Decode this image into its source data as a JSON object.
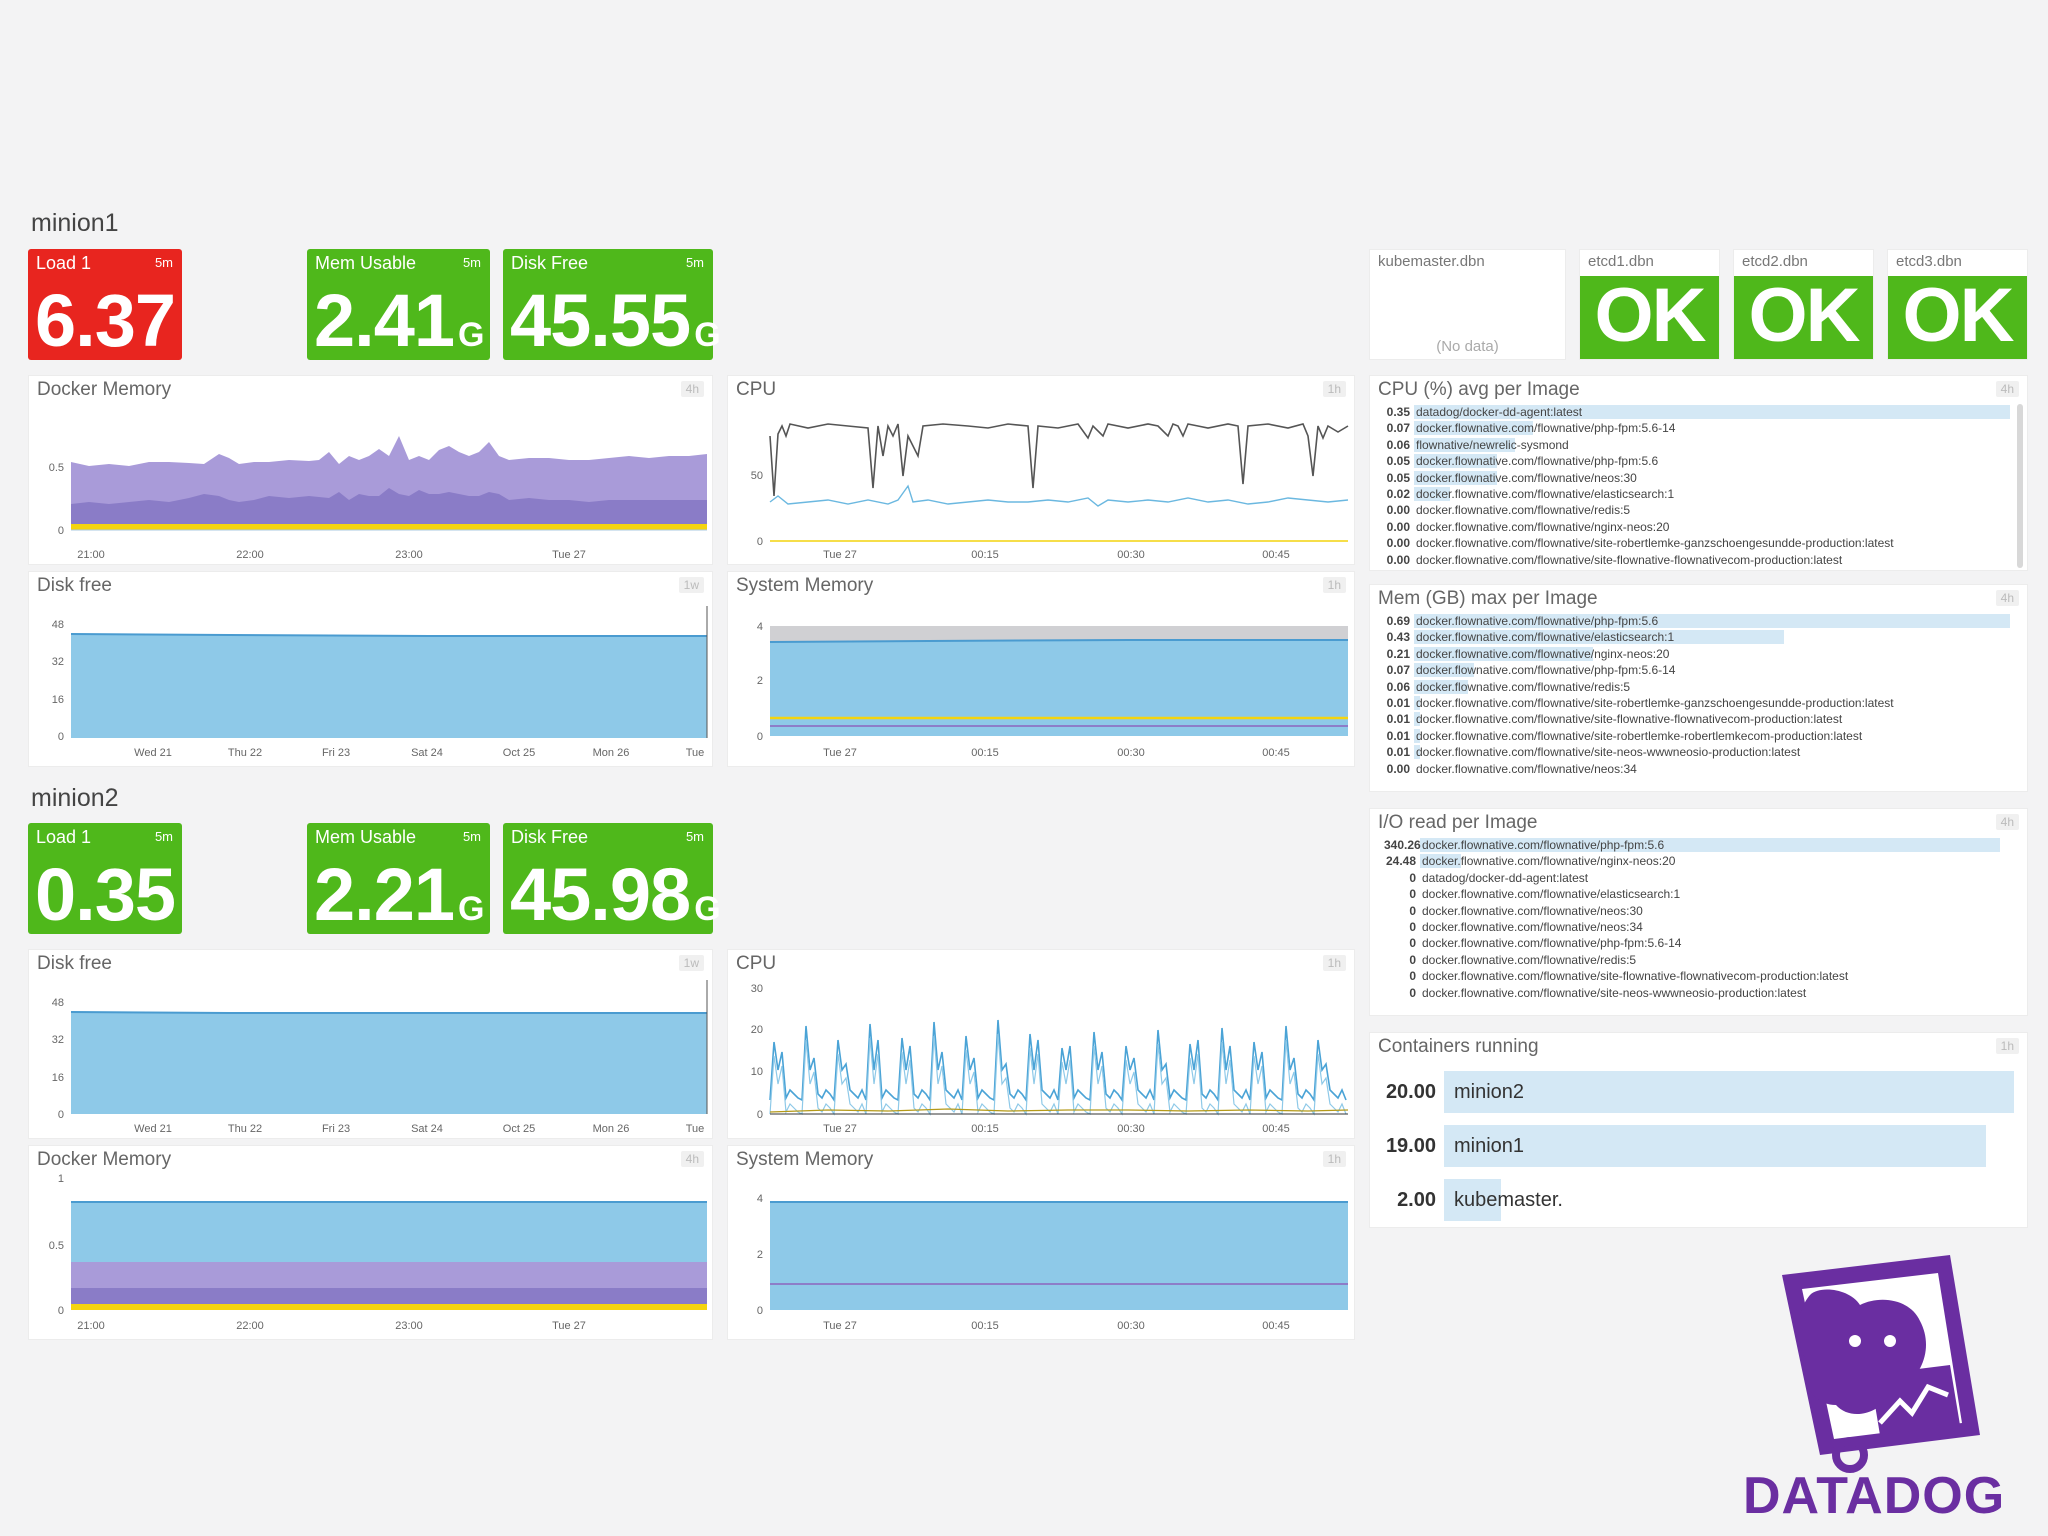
{
  "colors": {
    "red": "#e8251f",
    "green": "#4fb81b",
    "blue": "#8ec9e8",
    "purple": "#a79ad8",
    "dark_purple": "#8d7dc8",
    "yellow": "#f4d40f",
    "brand": "#6a2ea1"
  },
  "minion1": {
    "title": "minion1",
    "load": {
      "label": "Load 1",
      "span": "5m",
      "value": "6.37",
      "status": "red"
    },
    "mem": {
      "label": "Mem Usable",
      "span": "5m",
      "value": "2.41",
      "unit": "G"
    },
    "disk": {
      "label": "Disk Free",
      "span": "5m",
      "value": "45.55",
      "unit": "G"
    },
    "docker_memory": {
      "title": "Docker Memory",
      "badge": "4h",
      "yticks": [
        "0.5",
        "0"
      ],
      "xticks": [
        "21:00",
        "22:00",
        "23:00",
        "Tue 27"
      ]
    },
    "cpu": {
      "title": "CPU",
      "badge": "1h",
      "yticks": [
        "50",
        "0"
      ],
      "xticks": [
        "Tue 27",
        "00:15",
        "00:30",
        "00:45"
      ]
    },
    "disk_free": {
      "title": "Disk free",
      "badge": "1w",
      "yticks": [
        "48",
        "32",
        "16",
        "0"
      ],
      "xticks": [
        "Wed 21",
        "Thu 22",
        "Fri 23",
        "Sat 24",
        "Oct 25",
        "Mon 26",
        "Tue"
      ]
    },
    "system_memory": {
      "title": "System Memory",
      "badge": "1h",
      "yticks": [
        "4",
        "2",
        "0"
      ],
      "xticks": [
        "Tue 27",
        "00:15",
        "00:30",
        "00:45"
      ]
    }
  },
  "minion2": {
    "title": "minion2",
    "load": {
      "label": "Load 1",
      "span": "5m",
      "value": "0.35",
      "status": "green"
    },
    "mem": {
      "label": "Mem Usable",
      "span": "5m",
      "value": "2.21",
      "unit": "G"
    },
    "disk": {
      "label": "Disk Free",
      "span": "5m",
      "value": "45.98",
      "unit": "G"
    },
    "disk_free": {
      "title": "Disk free",
      "badge": "1w",
      "yticks": [
        "48",
        "32",
        "16",
        "0"
      ],
      "xticks": [
        "Wed 21",
        "Thu 22",
        "Fri 23",
        "Sat 24",
        "Oct 25",
        "Mon 26",
        "Tue"
      ]
    },
    "cpu": {
      "title": "CPU",
      "badge": "1h",
      "yticks": [
        "30",
        "20",
        "10",
        "0"
      ],
      "xticks": [
        "Tue 27",
        "00:15",
        "00:30",
        "00:45"
      ]
    },
    "docker_memory": {
      "title": "Docker Memory",
      "badge": "4h",
      "yticks": [
        "1",
        "0.5",
        "0"
      ],
      "xticks": [
        "21:00",
        "22:00",
        "23:00",
        "Tue 27"
      ]
    },
    "system_memory": {
      "title": "System Memory",
      "badge": "1h",
      "yticks": [
        "4",
        "2",
        "0"
      ],
      "xticks": [
        "Tue 27",
        "00:15",
        "00:30",
        "00:45"
      ]
    }
  },
  "checks": [
    {
      "title": "kubemaster.dbn",
      "status": "",
      "nodata": "(No data)"
    },
    {
      "title": "etcd1.dbn",
      "status": "OK",
      "nodata": ""
    },
    {
      "title": "etcd2.dbn",
      "status": "OK",
      "nodata": ""
    },
    {
      "title": "etcd3.dbn",
      "status": "OK",
      "nodata": ""
    }
  ],
  "cpu_per_image": {
    "title": "CPU (%) avg per Image",
    "badge": "4h",
    "rows": [
      {
        "value": "0.35",
        "frac": 1.0,
        "label": "datadog/docker-dd-agent:latest"
      },
      {
        "value": "0.07",
        "frac": 0.2,
        "label": "docker.flownative.com/flownative/php-fpm:5.6-14"
      },
      {
        "value": "0.06",
        "frac": 0.17,
        "label": "flownative/newrelic-sysmond"
      },
      {
        "value": "0.05",
        "frac": 0.14,
        "label": "docker.flownative.com/flownative/php-fpm:5.6"
      },
      {
        "value": "0.05",
        "frac": 0.14,
        "label": "docker.flownative.com/flownative/neos:30"
      },
      {
        "value": "0.02",
        "frac": 0.06,
        "label": "docker.flownative.com/flownative/elasticsearch:1"
      },
      {
        "value": "0.00",
        "frac": 0.0,
        "label": "docker.flownative.com/flownative/redis:5"
      },
      {
        "value": "0.00",
        "frac": 0.0,
        "label": "docker.flownative.com/flownative/nginx-neos:20"
      },
      {
        "value": "0.00",
        "frac": 0.0,
        "label": "docker.flownative.com/flownative/site-robertlemke-ganzschoengesundde-production:latest"
      },
      {
        "value": "0.00",
        "frac": 0.0,
        "label": "docker.flownative.com/flownative/site-flownative-flownativecom-production:latest"
      }
    ]
  },
  "mem_per_image": {
    "title": "Mem (GB) max per Image",
    "badge": "4h",
    "rows": [
      {
        "value": "0.69",
        "frac": 1.0,
        "label": "docker.flownative.com/flownative/php-fpm:5.6"
      },
      {
        "value": "0.43",
        "frac": 0.62,
        "label": "docker.flownative.com/flownative/elasticsearch:1"
      },
      {
        "value": "0.21",
        "frac": 0.3,
        "label": "docker.flownative.com/flownative/nginx-neos:20"
      },
      {
        "value": "0.07",
        "frac": 0.1,
        "label": "docker.flownative.com/flownative/php-fpm:5.6-14"
      },
      {
        "value": "0.06",
        "frac": 0.09,
        "label": "docker.flownative.com/flownative/redis:5"
      },
      {
        "value": "0.01",
        "frac": 0.01,
        "label": "docker.flownative.com/flownative/site-robertlemke-ganzschoengesundde-production:latest"
      },
      {
        "value": "0.01",
        "frac": 0.01,
        "label": "docker.flownative.com/flownative/site-flownative-flownativecom-production:latest"
      },
      {
        "value": "0.01",
        "frac": 0.01,
        "label": "docker.flownative.com/flownative/site-robertlemke-robertlemkecom-production:latest"
      },
      {
        "value": "0.01",
        "frac": 0.01,
        "label": "docker.flownative.com/flownative/site-neos-wwwneosio-production:latest"
      },
      {
        "value": "0.00",
        "frac": 0.0,
        "label": "docker.flownative.com/flownative/neos:34"
      }
    ]
  },
  "io_per_image": {
    "title": "I/O read per Image",
    "badge": "4h",
    "rows": [
      {
        "value": "340.26",
        "frac": 1.0,
        "label": "docker.flownative.com/flownative/php-fpm:5.6"
      },
      {
        "value": "24.48",
        "frac": 0.07,
        "label": "docker.flownative.com/flownative/nginx-neos:20"
      },
      {
        "value": "0",
        "frac": 0.0,
        "label": "datadog/docker-dd-agent:latest"
      },
      {
        "value": "0",
        "frac": 0.0,
        "label": "docker.flownative.com/flownative/elasticsearch:1"
      },
      {
        "value": "0",
        "frac": 0.0,
        "label": "docker.flownative.com/flownative/neos:30"
      },
      {
        "value": "0",
        "frac": 0.0,
        "label": "docker.flownative.com/flownative/neos:34"
      },
      {
        "value": "0",
        "frac": 0.0,
        "label": "docker.flownative.com/flownative/php-fpm:5.6-14"
      },
      {
        "value": "0",
        "frac": 0.0,
        "label": "docker.flownative.com/flownative/redis:5"
      },
      {
        "value": "0",
        "frac": 0.0,
        "label": "docker.flownative.com/flownative/site-flownative-flownativecom-production:latest"
      },
      {
        "value": "0",
        "frac": 0.0,
        "label": "docker.flownative.com/flownative/site-neos-wwwneosio-production:latest"
      }
    ]
  },
  "containers_running": {
    "title": "Containers running",
    "badge": "1h",
    "rows": [
      {
        "value": "20.00",
        "count": 20,
        "label": "minion2"
      },
      {
        "value": "19.00",
        "count": 19,
        "label": "minion1"
      },
      {
        "value": "2.00",
        "count": 2,
        "label": "kubemaster."
      }
    ]
  },
  "brand": {
    "name": "DATADOG",
    "icon": "datadog-dog-icon"
  }
}
